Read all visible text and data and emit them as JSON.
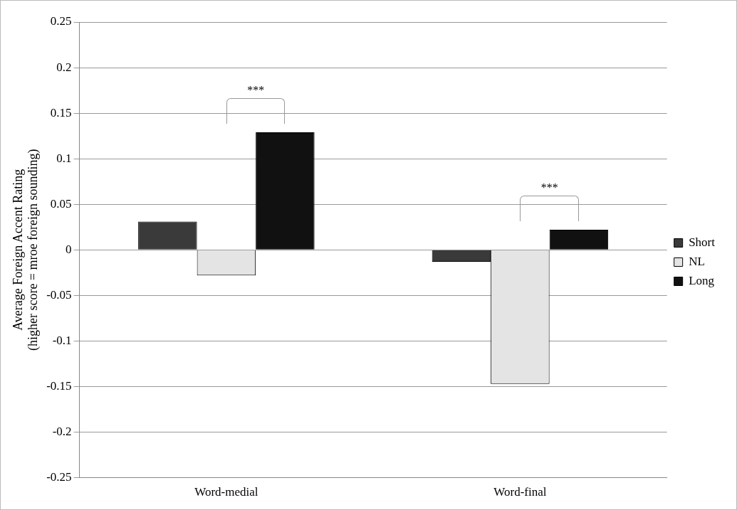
{
  "chart_data": {
    "type": "bar",
    "ylabel": "Average Foreign Accent Rating\n(higher score = mroe foreign sounding)",
    "categories": [
      "Word-medial",
      "Word-final"
    ],
    "series": [
      {
        "name": "Short",
        "color": "#3a3a3a",
        "values": [
          0.031,
          -0.013
        ]
      },
      {
        "name": "NL",
        "color": "#e4e4e4",
        "values": [
          -0.028,
          -0.147
        ]
      },
      {
        "name": "Long",
        "color": "#111111",
        "values": [
          0.129,
          0.022
        ]
      }
    ],
    "ylim": [
      -0.25,
      0.25
    ],
    "yticks": [
      -0.25,
      -0.2,
      -0.15,
      -0.1,
      -0.05,
      0,
      0.05,
      0.1,
      0.15,
      0.2,
      0.25
    ],
    "grid": "y",
    "legend": "right",
    "annotations": [
      "***",
      "***"
    ]
  }
}
